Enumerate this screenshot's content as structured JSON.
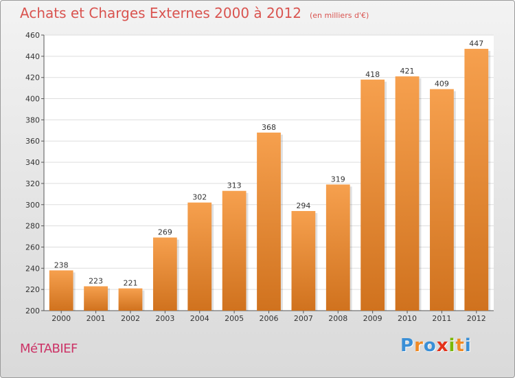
{
  "chart_data": {
    "type": "bar",
    "title": "Achats et Charges Externes 2000 à 2012",
    "subtitle": "(en milliers d'€)",
    "categories": [
      "2000",
      "2001",
      "2002",
      "2003",
      "2004",
      "2005",
      "2006",
      "2007",
      "2008",
      "2009",
      "2010",
      "2011",
      "2012"
    ],
    "values": [
      238,
      223,
      221,
      269,
      302,
      313,
      368,
      294,
      319,
      418,
      421,
      409,
      447
    ],
    "ylim": [
      200,
      460
    ],
    "yticks": [
      200,
      220,
      240,
      260,
      280,
      300,
      320,
      340,
      360,
      380,
      400,
      420,
      440,
      460
    ],
    "grid": true,
    "bar_color_top": "#f6a04e",
    "bar_color_bottom": "#d0721e"
  },
  "place_name": "MéTABIEF",
  "brand": {
    "text": "Proxiti",
    "letters": [
      "P",
      "r",
      "o",
      "x",
      "i",
      "t",
      "i"
    ],
    "colors": [
      "#3a8fd6",
      "#f08a24",
      "#3a8fd6",
      "#e4321b",
      "#7ab800",
      "#f08a24",
      "#3a8fd6"
    ]
  }
}
